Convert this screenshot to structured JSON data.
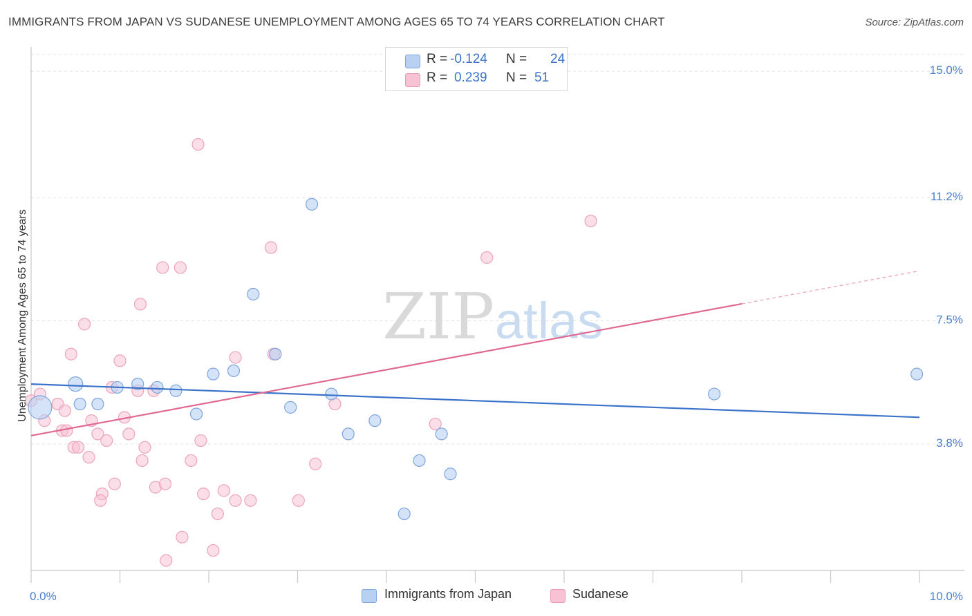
{
  "title": "IMMIGRANTS FROM JAPAN VS SUDANESE UNEMPLOYMENT AMONG AGES 65 TO 74 YEARS CORRELATION CHART",
  "source": "Source: ZipAtlas.com",
  "watermark": {
    "zip": "ZIP",
    "atlas": "atlas"
  },
  "colors": {
    "blue": "#3a73c9",
    "pink": "#e06893",
    "blue_fill": "#b8d0f2",
    "pink_fill": "#f7c3d4",
    "tick": "#4a7fd0"
  },
  "legend": {
    "r_label": "R =",
    "n_label": "N =",
    "japan": {
      "r": "-0.124",
      "n": "24"
    },
    "sudanese": {
      "r": "0.239",
      "n": "51"
    }
  },
  "chart_data": {
    "type": "scatter",
    "title": "IMMIGRANTS FROM JAPAN VS SUDANESE UNEMPLOYMENT AMONG AGES 65 TO 74 YEARS CORRELATION CHART",
    "xlabel": "",
    "ylabel": "Unemployment Among Ages 65 to 74 years",
    "xlim": [
      0,
      10
    ],
    "ylim": [
      0,
      15.5
    ],
    "x_tick_labels": [
      "0.0%",
      "10.0%"
    ],
    "y_ticks": [
      3.8,
      7.5,
      11.2,
      15.0
    ],
    "y_tick_labels": [
      "3.8%",
      "7.5%",
      "11.2%",
      "15.0%"
    ],
    "legend_position": "top-center",
    "series": [
      {
        "name": "Immigrants from Japan",
        "color": "#3a73c9",
        "trend": {
          "x0": 0,
          "y0": 5.6,
          "x1": 10,
          "y1": 4.6
        },
        "points": [
          [
            0.1,
            4.9
          ],
          [
            0.5,
            5.6
          ],
          [
            0.55,
            5.0
          ],
          [
            0.75,
            5.0
          ],
          [
            0.97,
            5.5
          ],
          [
            1.2,
            5.6
          ],
          [
            1.42,
            5.5
          ],
          [
            1.63,
            5.4
          ],
          [
            1.86,
            4.7
          ],
          [
            2.05,
            5.9
          ],
          [
            2.28,
            6.0
          ],
          [
            2.5,
            8.3
          ],
          [
            2.75,
            6.5
          ],
          [
            2.92,
            4.9
          ],
          [
            3.16,
            11.0
          ],
          [
            3.38,
            5.3
          ],
          [
            3.57,
            4.1
          ],
          [
            3.87,
            4.5
          ],
          [
            4.2,
            1.7
          ],
          [
            4.37,
            3.3
          ],
          [
            4.62,
            4.1
          ],
          [
            4.72,
            2.9
          ],
          [
            7.69,
            5.3
          ],
          [
            9.97,
            5.9
          ]
        ]
      },
      {
        "name": "Sudanese",
        "color": "#e06893",
        "trend": {
          "x0": 0,
          "y0": 4.05,
          "x1": 10,
          "y1": 9.0,
          "solid_until_x": 8.0
        },
        "points": [
          [
            0.0,
            5.1
          ],
          [
            0.1,
            5.3
          ],
          [
            0.15,
            4.5
          ],
          [
            0.3,
            5.0
          ],
          [
            0.38,
            4.8
          ],
          [
            0.35,
            4.2
          ],
          [
            0.4,
            4.2
          ],
          [
            0.45,
            6.5
          ],
          [
            0.48,
            3.7
          ],
          [
            0.53,
            3.7
          ],
          [
            0.6,
            7.4
          ],
          [
            0.65,
            3.4
          ],
          [
            0.68,
            4.5
          ],
          [
            0.75,
            4.1
          ],
          [
            0.8,
            2.3
          ],
          [
            0.85,
            3.9
          ],
          [
            0.91,
            5.5
          ],
          [
            0.94,
            2.6
          ],
          [
            1.0,
            6.3
          ],
          [
            1.05,
            4.6
          ],
          [
            1.1,
            4.1
          ],
          [
            1.2,
            5.4
          ],
          [
            1.23,
            8.0
          ],
          [
            1.25,
            3.3
          ],
          [
            1.28,
            3.7
          ],
          [
            1.38,
            5.4
          ],
          [
            1.4,
            2.5
          ],
          [
            1.48,
            9.1
          ],
          [
            1.51,
            2.6
          ],
          [
            1.52,
            0.3
          ],
          [
            1.68,
            9.1
          ],
          [
            1.7,
            1.0
          ],
          [
            1.8,
            3.3
          ],
          [
            1.88,
            12.8
          ],
          [
            1.91,
            3.9
          ],
          [
            1.94,
            2.3
          ],
          [
            2.05,
            0.6
          ],
          [
            2.1,
            1.7
          ],
          [
            2.17,
            2.4
          ],
          [
            2.3,
            6.4
          ],
          [
            2.47,
            2.1
          ],
          [
            2.7,
            9.7
          ],
          [
            2.73,
            6.5
          ],
          [
            3.01,
            2.1
          ],
          [
            3.2,
            3.2
          ],
          [
            3.42,
            5.0
          ],
          [
            5.13,
            9.4
          ],
          [
            4.55,
            4.4
          ],
          [
            6.3,
            10.5
          ],
          [
            2.3,
            2.1
          ],
          [
            0.78,
            2.1
          ]
        ]
      }
    ]
  },
  "bottom_legend": {
    "japan": "Immigrants from Japan",
    "sudanese": "Sudanese"
  }
}
